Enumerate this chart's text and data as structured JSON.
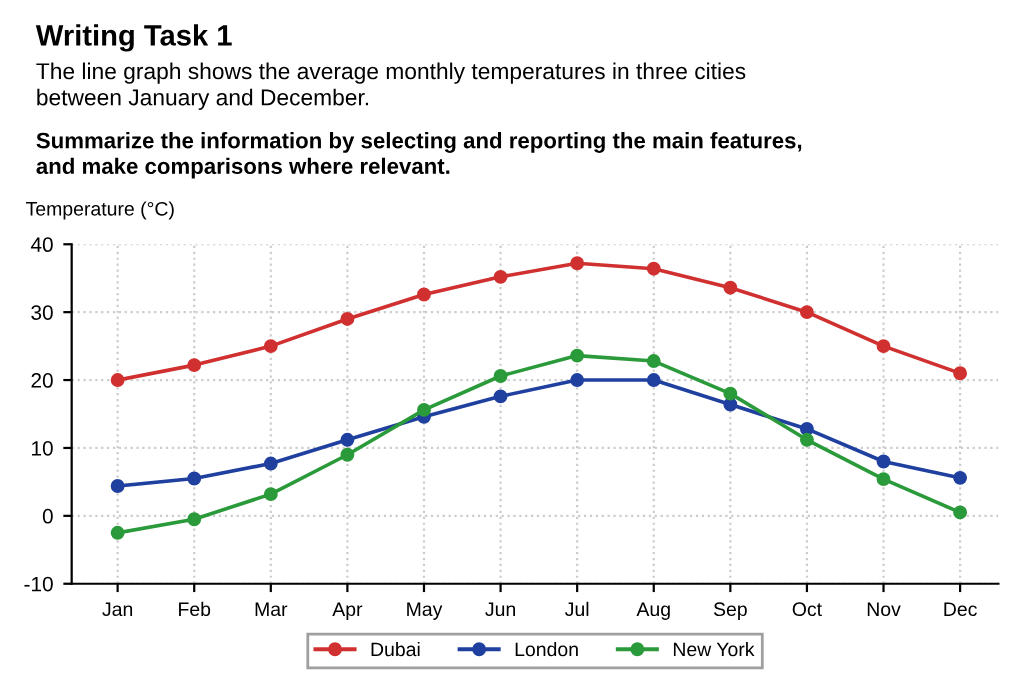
{
  "chart_data": {
    "type": "line",
    "title": "Writing Task 1",
    "subtitle": "The line graph shows the average monthly temperatures in three cities\nbetween January and December.",
    "annotations": [
      "Summarize the information by selecting and reporting the main features,\nand make comparisons where relevant."
    ],
    "ylabel": "Temperature (°C)",
    "categories": [
      "Jan",
      "Feb",
      "Mar",
      "Apr",
      "May",
      "Jun",
      "Jul",
      "Aug",
      "Sep",
      "Oct",
      "Nov",
      "Dec"
    ],
    "series": [
      {
        "name": "Dubai",
        "color": "#d03030",
        "values": [
          20,
          22.2,
          25,
          29,
          32.6,
          35.2,
          37.2,
          36.4,
          33.6,
          30,
          25,
          21
        ]
      },
      {
        "name": "London",
        "color": "#2040a0",
        "values": [
          4.4,
          5.5,
          7.7,
          11.2,
          14.6,
          17.6,
          20,
          20,
          16.4,
          12.8,
          8,
          5.6
        ]
      },
      {
        "name": "New York",
        "color": "#2a9a3a",
        "values": [
          -2.5,
          -0.5,
          3.2,
          9,
          15.6,
          20.6,
          23.6,
          22.8,
          18,
          11.2,
          5.4,
          0.5
        ]
      }
    ],
    "ylim": [
      -10,
      40
    ],
    "yticks": [
      -10,
      0,
      10,
      20,
      30,
      40
    ],
    "grid": true,
    "legend": "bottom",
    "marker": "circle",
    "line_style": "solid"
  }
}
